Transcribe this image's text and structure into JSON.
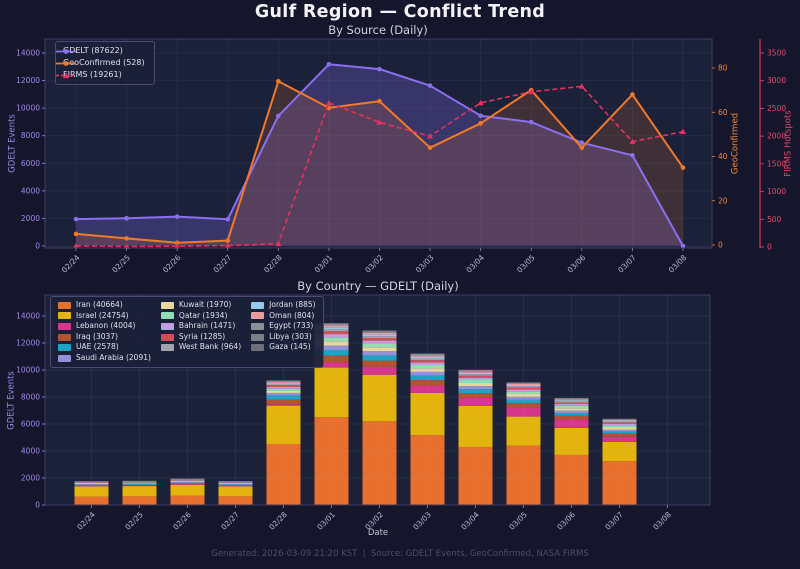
{
  "page": {
    "title": "Gulf Region — Conflict Trend",
    "footer": "Generated: 2026-03-09 21:20 KST  |  Source: GDELT Events, GeoConfirmed, NASA FIRMS"
  },
  "colors": {
    "page_bg": "#15152b",
    "plot_bg": "#1b2139",
    "plot_border": "#3d3d61",
    "grid": "#8d97c4",
    "x_tick": "#b9b9d4",
    "title": "#f2f2f7",
    "subtitle": "#d2d2e0",
    "footer": "#4d4d68"
  },
  "chart_data": [
    {
      "type": "line",
      "title": "By Source (Daily)",
      "x": [
        "02/24",
        "02/25",
        "02/26",
        "02/27",
        "02/28",
        "03/01",
        "03/02",
        "03/03",
        "03/04",
        "03/05",
        "03/06",
        "03/07",
        "03/08"
      ],
      "xlabel": "",
      "grid": true,
      "legend_position": "upper-left",
      "axes": {
        "left": {
          "label": "GDELT Events",
          "color": "#a08ae8",
          "ticks": [
            0,
            2000,
            4000,
            6000,
            8000,
            10000,
            12000,
            14000
          ],
          "range": [
            0,
            14000
          ]
        },
        "right1": {
          "label": "GeoConfirmed",
          "color": "#f2873d",
          "ticks": [
            0,
            20,
            40,
            60,
            80
          ],
          "range": [
            0,
            80
          ]
        },
        "right2": {
          "label": "FIRMS Hotspots",
          "color": "#e8486e",
          "ticks": [
            0,
            500,
            1000,
            1500,
            2000,
            2500,
            3000,
            3500
          ],
          "range": [
            0,
            3500
          ]
        }
      },
      "series": [
        {
          "name": "GDELT (87622)",
          "axis": "left",
          "color": "#8b6ff0",
          "style": "solid",
          "marker": "circle",
          "fill": true,
          "values": [
            1950,
            2010,
            2130,
            1940,
            9440,
            13180,
            12830,
            11630,
            9450,
            8990,
            7492,
            6580,
            0
          ]
        },
        {
          "name": "GeoConfirmed (528)",
          "axis": "right1",
          "color": "#f2782a",
          "style": "solid",
          "marker": "circle",
          "fill": true,
          "values": [
            5,
            3,
            1,
            2,
            74,
            62,
            65,
            44,
            55,
            70,
            44,
            68,
            35
          ]
        },
        {
          "name": "FIRMS (19261)",
          "axis": "right2",
          "color": "#e63060",
          "style": "dashed",
          "marker": "triangle",
          "fill": false,
          "values": [
            20,
            10,
            15,
            25,
            60,
            2600,
            2250,
            2000,
            2600,
            2800,
            2900,
            1900,
            2081
          ]
        }
      ]
    },
    {
      "type": "stacked-bar",
      "title": "By Country — GDELT (Daily)",
      "x": [
        "02/24",
        "02/25",
        "02/26",
        "02/27",
        "02/28",
        "03/01",
        "03/02",
        "03/03",
        "03/04",
        "03/05",
        "03/06",
        "03/07",
        "03/08"
      ],
      "xlabel": "Date",
      "ylabel": "GDELT Events",
      "ylabel_color": "#a08ae8",
      "yticks": [
        0,
        2000,
        4000,
        6000,
        8000,
        10000,
        12000,
        14000
      ],
      "ylim": [
        0,
        15550
      ],
      "grid": true,
      "legend_position": "upper-left",
      "series": [
        {
          "label": "Iran (40664)",
          "color": "#e8702e",
          "values": [
            620,
            640,
            700,
            640,
            4520,
            6500,
            6200,
            5180,
            4300,
            4400,
            3710,
            3254,
            0
          ]
        },
        {
          "label": "Israel (24754)",
          "color": "#e3b50c",
          "values": [
            750,
            760,
            780,
            740,
            2840,
            3680,
            3450,
            3130,
            3050,
            2150,
            2000,
            1424,
            0
          ]
        },
        {
          "label": "Lebanon (4004)",
          "color": "#d6368c",
          "values": [
            30,
            30,
            40,
            30,
            100,
            380,
            600,
            540,
            590,
            670,
            620,
            374,
            0
          ]
        },
        {
          "label": "Iraq (3037)",
          "color": "#b35431",
          "values": [
            40,
            40,
            50,
            40,
            330,
            500,
            450,
            400,
            350,
            320,
            280,
            237,
            0
          ]
        },
        {
          "label": "UAE (2578)",
          "color": "#1fa3c4",
          "values": [
            60,
            60,
            70,
            60,
            330,
            420,
            380,
            330,
            280,
            250,
            200,
            138,
            0
          ]
        },
        {
          "label": "Saudi Arabia (2091)",
          "color": "#9491d6",
          "values": [
            50,
            50,
            60,
            50,
            180,
            330,
            310,
            280,
            240,
            220,
            180,
            141,
            0
          ]
        },
        {
          "label": "Kuwait (1970)",
          "color": "#ead79a",
          "values": [
            40,
            40,
            50,
            40,
            150,
            310,
            290,
            260,
            230,
            210,
            180,
            170,
            0
          ]
        },
        {
          "label": "Qatar (1934)",
          "color": "#93dcb4",
          "values": [
            40,
            40,
            50,
            40,
            160,
            300,
            280,
            250,
            220,
            200,
            180,
            174,
            0
          ]
        },
        {
          "label": "Bahrain (1471)",
          "color": "#c79be0",
          "values": [
            30,
            30,
            40,
            30,
            130,
            240,
            220,
            190,
            170,
            150,
            130,
            111,
            0
          ]
        },
        {
          "label": "Syria (1285)",
          "color": "#d14f52",
          "values": [
            20,
            20,
            30,
            20,
            140,
            210,
            190,
            170,
            150,
            130,
            110,
            95,
            0
          ]
        },
        {
          "label": "West Bank (964)",
          "color": "#a3a3ad",
          "values": [
            20,
            20,
            20,
            20,
            90,
            150,
            140,
            130,
            110,
            100,
            90,
            74,
            0
          ]
        },
        {
          "label": "Jordan (885)",
          "color": "#92cbe8",
          "values": [
            20,
            20,
            20,
            20,
            80,
            140,
            130,
            120,
            100,
            90,
            80,
            65,
            0
          ]
        },
        {
          "label": "Oman (804)",
          "color": "#eb9c9c",
          "values": [
            20,
            20,
            20,
            20,
            80,
            130,
            120,
            100,
            90,
            80,
            70,
            54,
            0
          ]
        },
        {
          "label": "Egypt (733)",
          "color": "#8f8f99",
          "values": [
            15,
            15,
            20,
            15,
            70,
            120,
            110,
            95,
            85,
            75,
            65,
            48,
            0
          ]
        },
        {
          "label": "Libya (303)",
          "color": "#7f7f89",
          "values": [
            5,
            5,
            10,
            5,
            30,
            50,
            45,
            40,
            35,
            30,
            25,
            23,
            0
          ]
        },
        {
          "label": "Gaza (145)",
          "color": "#6f6f79",
          "values": [
            5,
            5,
            5,
            5,
            15,
            20,
            20,
            15,
            15,
            15,
            10,
            15,
            0
          ]
        }
      ]
    }
  ]
}
